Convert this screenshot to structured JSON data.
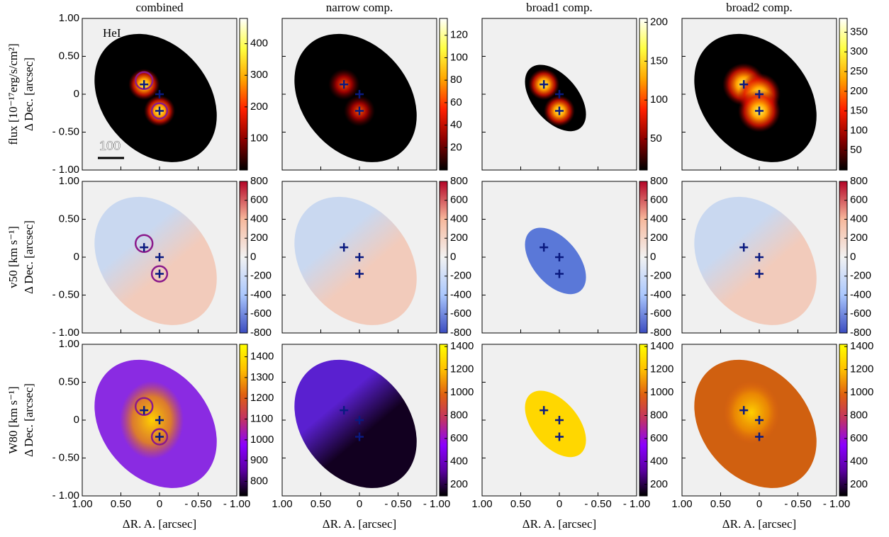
{
  "chart_data": {
    "type": "heatmap",
    "titles": [
      "combined",
      "narrow comp.",
      "broad1 comp.",
      "broad2 comp."
    ],
    "row_labels": [
      "flux [10⁻¹⁷erg/s/cm²]",
      "v50 [km s⁻¹]",
      "W80 [km s⁻¹]"
    ],
    "ylabel": "Δ Dec. [arcsec]",
    "xlabel": "ΔR. A. [arcsec]",
    "annotation": "HeI",
    "scalebar_label": "100",
    "xlim": [
      1,
      -1
    ],
    "ylim": [
      -1,
      1
    ],
    "xticks": [
      {
        "value": 1,
        "label": "1.00"
      },
      {
        "value": 0.5,
        "label": "0.50"
      },
      0,
      {
        "value": -0.5,
        "label": "- 0.50"
      },
      {
        "value": -1,
        "label": "- 1.00"
      }
    ],
    "yticks": [
      {
        "value": 1,
        "label": "1.00"
      },
      {
        "value": 0.5,
        "label": "0.50"
      },
      0,
      {
        "value": -0.5,
        "label": "- 0.50"
      },
      {
        "value": -1,
        "label": "- 1.00"
      }
    ],
    "colormaps": [
      [
        "#000000",
        "#8b0000",
        "#ff2000",
        "#ffa500",
        "#ffff40",
        "#ffffff"
      ],
      [
        "#3b4cc0",
        "#aac7fd",
        "#f2f2f2",
        "#f7b89c",
        "#b40426"
      ],
      [
        "#000000",
        "#5a00a0",
        "#8a00ff",
        "#c0306a",
        "#e06010",
        "#ffc000",
        "#ffff00"
      ]
    ],
    "colorbars": [
      [
        {
          "lim": [
            0,
            480
          ],
          "ticks": [
            100,
            200,
            300,
            400
          ]
        },
        {
          "lim": [
            0,
            135
          ],
          "ticks": [
            20,
            40,
            60,
            80,
            100,
            120
          ]
        },
        {
          "lim": [
            10,
            205
          ],
          "ticks": [
            50,
            100,
            150,
            200
          ]
        },
        {
          "lim": [
            0,
            385
          ],
          "ticks": [
            50,
            100,
            150,
            200,
            250,
            300,
            350
          ]
        }
      ],
      [
        {
          "lim": [
            -800,
            800
          ],
          "ticks": [
            -800,
            -600,
            -400,
            -200,
            0,
            200,
            400,
            600,
            800
          ]
        },
        {
          "lim": [
            -800,
            800
          ],
          "ticks": [
            -800,
            -600,
            -400,
            -200,
            0,
            200,
            400,
            600,
            800
          ]
        },
        {
          "lim": [
            -800,
            800
          ],
          "ticks": [
            -800,
            -600,
            -400,
            -200,
            0,
            200,
            400,
            600,
            800
          ]
        },
        {
          "lim": [
            -800,
            800
          ],
          "ticks": [
            -800,
            -600,
            -400,
            -200,
            0,
            200,
            400,
            600,
            800
          ]
        }
      ],
      [
        {
          "lim": [
            730,
            1460
          ],
          "ticks": [
            800,
            900,
            1000,
            1100,
            1200,
            1300,
            1400
          ]
        },
        {
          "lim": [
            100,
            1420
          ],
          "ticks": [
            200,
            400,
            600,
            800,
            1000,
            1200,
            1400
          ]
        },
        {
          "lim": [
            100,
            1420
          ],
          "ticks": [
            200,
            400,
            600,
            800,
            1000,
            1200,
            1400
          ]
        },
        {
          "lim": [
            100,
            1420
          ],
          "ticks": [
            200,
            400,
            600,
            800,
            1000,
            1200,
            1400
          ]
        }
      ]
    ],
    "crosses": [
      {
        "x": 0.2,
        "y": 0.13
      },
      {
        "x": 0,
        "y": 0
      },
      {
        "x": 0,
        "y": -0.22
      }
    ],
    "circles": [
      {
        "x": 0.2,
        "y": 0.18,
        "r": 0.11
      },
      {
        "x": 0,
        "y": -0.22,
        "r": 0.1
      }
    ]
  }
}
